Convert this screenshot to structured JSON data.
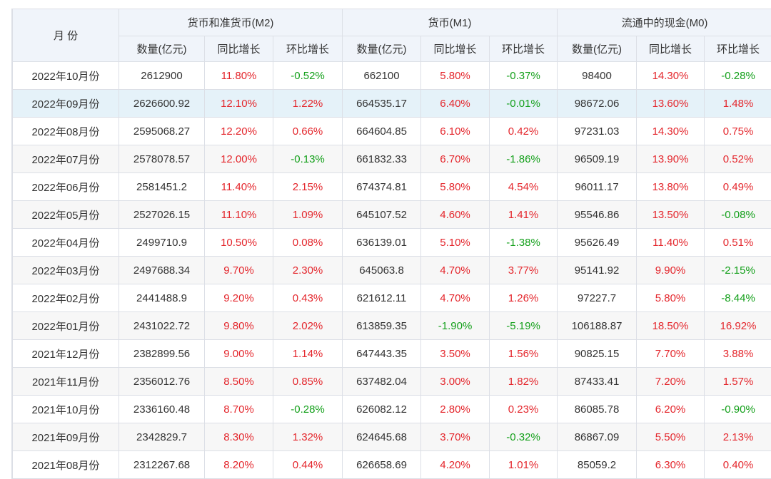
{
  "table": {
    "header": {
      "month": "月 份",
      "groups": [
        {
          "name": "货币和准货币(M2)",
          "columns": [
            "数量(亿元)",
            "同比增长",
            "环比增长"
          ]
        },
        {
          "name": "货币(M1)",
          "columns": [
            "数量(亿元)",
            "同比增长",
            "环比增长"
          ]
        },
        {
          "name": "流通中的现金(M0)",
          "columns": [
            "数量(亿元)",
            "同比增长",
            "环比增长"
          ]
        }
      ]
    },
    "rows": [
      [
        "2022年10月份",
        "2612900",
        "11.80%",
        "-0.52%",
        "662100",
        "5.80%",
        "-0.37%",
        "98400",
        "14.30%",
        "-0.28%"
      ],
      [
        "2022年09月份",
        "2626600.92",
        "12.10%",
        "1.22%",
        "664535.17",
        "6.40%",
        "-0.01%",
        "98672.06",
        "13.60%",
        "1.48%"
      ],
      [
        "2022年08月份",
        "2595068.27",
        "12.20%",
        "0.66%",
        "664604.85",
        "6.10%",
        "0.42%",
        "97231.03",
        "14.30%",
        "0.75%"
      ],
      [
        "2022年07月份",
        "2578078.57",
        "12.00%",
        "-0.13%",
        "661832.33",
        "6.70%",
        "-1.86%",
        "96509.19",
        "13.90%",
        "0.52%"
      ],
      [
        "2022年06月份",
        "2581451.2",
        "11.40%",
        "2.15%",
        "674374.81",
        "5.80%",
        "4.54%",
        "96011.17",
        "13.80%",
        "0.49%"
      ],
      [
        "2022年05月份",
        "2527026.15",
        "11.10%",
        "1.09%",
        "645107.52",
        "4.60%",
        "1.41%",
        "95546.86",
        "13.50%",
        "-0.08%"
      ],
      [
        "2022年04月份",
        "2499710.9",
        "10.50%",
        "0.08%",
        "636139.01",
        "5.10%",
        "-1.38%",
        "95626.49",
        "11.40%",
        "0.51%"
      ],
      [
        "2022年03月份",
        "2497688.34",
        "9.70%",
        "2.30%",
        "645063.8",
        "4.70%",
        "3.77%",
        "95141.92",
        "9.90%",
        "-2.15%"
      ],
      [
        "2022年02月份",
        "2441488.9",
        "9.20%",
        "0.43%",
        "621612.11",
        "4.70%",
        "1.26%",
        "97227.7",
        "5.80%",
        "-8.44%"
      ],
      [
        "2022年01月份",
        "2431022.72",
        "9.80%",
        "2.02%",
        "613859.35",
        "-1.90%",
        "-5.19%",
        "106188.87",
        "18.50%",
        "16.92%"
      ],
      [
        "2021年12月份",
        "2382899.56",
        "9.00%",
        "1.14%",
        "647443.35",
        "3.50%",
        "1.56%",
        "90825.15",
        "7.70%",
        "3.88%"
      ],
      [
        "2021年11月份",
        "2356012.76",
        "8.50%",
        "0.85%",
        "637482.04",
        "3.00%",
        "1.82%",
        "87433.41",
        "7.20%",
        "1.57%"
      ],
      [
        "2021年10月份",
        "2336160.48",
        "8.70%",
        "-0.28%",
        "626082.12",
        "2.80%",
        "0.23%",
        "86085.78",
        "6.20%",
        "-0.90%"
      ],
      [
        "2021年09月份",
        "2342829.7",
        "8.30%",
        "1.32%",
        "624645.68",
        "3.70%",
        "-0.32%",
        "86867.09",
        "5.50%",
        "2.13%"
      ],
      [
        "2021年08月份",
        "2312267.68",
        "8.20%",
        "0.44%",
        "626658.69",
        "4.20%",
        "1.01%",
        "85059.2",
        "6.30%",
        "0.40%"
      ]
    ]
  }
}
